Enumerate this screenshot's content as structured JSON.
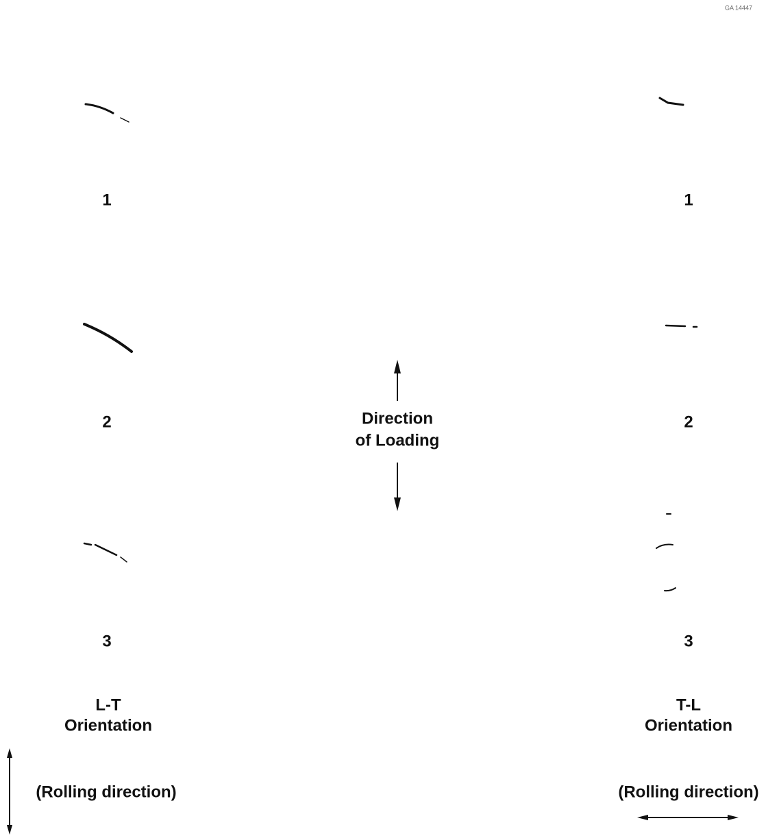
{
  "stamp": "GA 14447",
  "left": {
    "specimens": [
      "1",
      "2",
      "3"
    ],
    "orientation": [
      "L-T",
      "Orientation"
    ],
    "rolling": "(Rolling direction)"
  },
  "center": {
    "loading": [
      "Direction",
      "of Loading"
    ]
  },
  "right": {
    "specimens": [
      "1",
      "2",
      "3"
    ],
    "orientation": [
      "T-L",
      "Orientation"
    ],
    "rolling": "(Rolling direction)"
  }
}
